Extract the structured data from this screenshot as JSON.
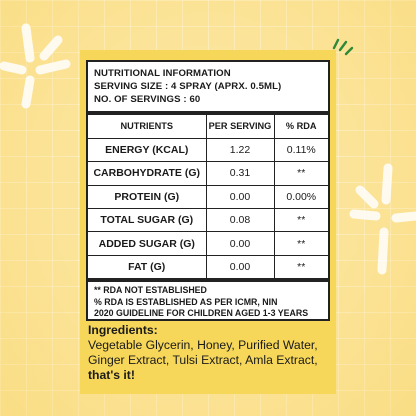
{
  "colors": {
    "background": "#fbe6a0",
    "panel": "#f7d759",
    "accent_green": "#2e8a36",
    "text": "#1a1a1a"
  },
  "icons": [
    "sparkle-icon",
    "sparkle-icon",
    "accent-lines-icon"
  ],
  "label": {
    "header": [
      "NUTRITIONAL INFORMATION",
      "SERVING SIZE : 4 SPRAY (APRX. 0.5ML)",
      "NO. OF SERVINGS : 60"
    ],
    "columns": [
      "NUTRIENTS",
      "PER SERVING",
      "% RDA"
    ],
    "rows": [
      {
        "nutrient": "ENERGY (KCAL)",
        "per_serving": "1.22",
        "rda": "0.11%"
      },
      {
        "nutrient": "CARBOHYDRATE (G)",
        "per_serving": "0.31",
        "rda": "**"
      },
      {
        "nutrient": "PROTEIN (G)",
        "per_serving": "0.00",
        "rda": "0.00%"
      },
      {
        "nutrient": "TOTAL SUGAR (G)",
        "per_serving": "0.08",
        "rda": "**"
      },
      {
        "nutrient": "ADDED SUGAR (G)",
        "per_serving": "0.00",
        "rda": "**"
      },
      {
        "nutrient": "FAT (G)",
        "per_serving": "0.00",
        "rda": "**"
      }
    ],
    "footnotes": [
      "** RDA NOT ESTABLISHED",
      "% RDA IS ESTABLISHED AS PER ICMR, NIN",
      "2020 GUIDELINE FOR CHILDREN AGED 1-3 YEARS"
    ]
  },
  "ingredients": {
    "title": "Ingredients:",
    "lines": [
      "Vegetable Glycerin, Honey, Purified Water,",
      "Ginger Extract, Tulsi Extract, Amla Extract,"
    ],
    "closing": "that's it!"
  }
}
